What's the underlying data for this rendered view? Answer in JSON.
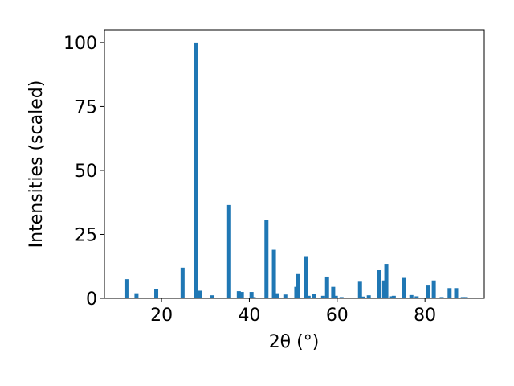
{
  "chart_data": {
    "type": "bar",
    "x_label": "2θ (°)",
    "y_label": "Intensities (scaled)",
    "color": "#1f77b4",
    "x": [
      12.2,
      14.3,
      18.8,
      24.8,
      27.9,
      28.8,
      31.6,
      35.4,
      37.6,
      38.3,
      40.5,
      41.0,
      43.9,
      45.6,
      46.3,
      48.2,
      50.7,
      51.1,
      52.9,
      53.5,
      54.8,
      56.8,
      57.7,
      59.1,
      59.7,
      61.0,
      65.2,
      65.9,
      67.2,
      69.6,
      70.7,
      71.2,
      72.3,
      72.9,
      75.2,
      76.9,
      78.1,
      80.7,
      82.0,
      83.8,
      85.6,
      87.1,
      88.6,
      89.3
    ],
    "values": [
      7.5,
      2,
      3.5,
      12,
      100,
      3,
      1.2,
      36.5,
      2.8,
      2.5,
      2.5,
      0.5,
      30.5,
      19,
      2,
      1.5,
      4.5,
      9.5,
      16.5,
      1,
      1.8,
      1,
      8.5,
      4.5,
      1,
      0.5,
      6.5,
      0.7,
      1.2,
      11,
      7,
      13.5,
      0.8,
      1,
      8,
      1.3,
      0.8,
      5,
      7,
      0.5,
      4,
      4,
      0.5,
      0.5
    ],
    "xlim": [
      7,
      93.5
    ],
    "ylim": [
      0,
      105
    ],
    "xticks": [
      20,
      40,
      60,
      80
    ],
    "yticks": [
      0,
      25,
      50,
      75,
      100
    ]
  }
}
